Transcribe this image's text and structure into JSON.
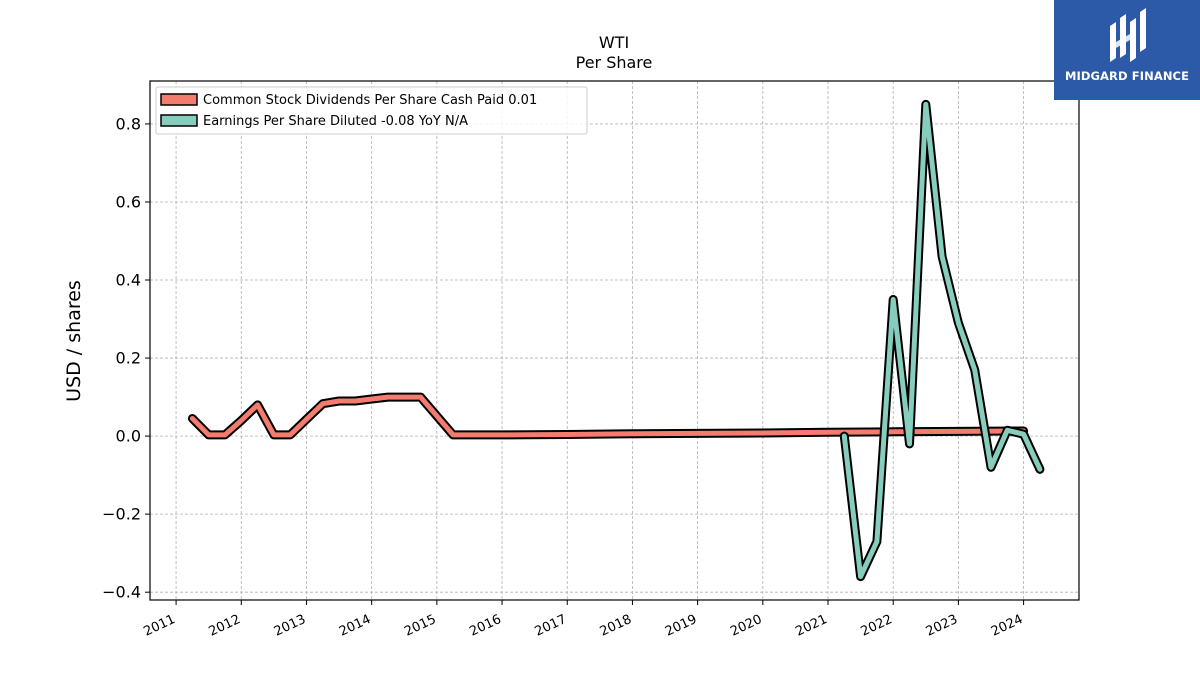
{
  "brand": {
    "name": "MIDGARD FINANCE",
    "bg_color": "#2c5aa8"
  },
  "chart_data": {
    "type": "line",
    "title": "WTI",
    "subtitle": "Per  Share",
    "xlabel": "",
    "ylabel": "USD / shares",
    "xlim": [
      2010.6,
      2024.85
    ],
    "ylim": [
      -0.42,
      0.91
    ],
    "yticks": [
      -0.4,
      -0.2,
      0.0,
      0.2,
      0.4,
      0.6,
      0.8
    ],
    "ytick_labels": [
      "−0.4",
      "−0.2",
      "0.0",
      "0.2",
      "0.4",
      "0.6",
      "0.8"
    ],
    "xticks": [
      2011,
      2012,
      2013,
      2014,
      2015,
      2016,
      2017,
      2018,
      2019,
      2020,
      2021,
      2022,
      2023,
      2024
    ],
    "xtick_labels": [
      "2011",
      "2012",
      "2013",
      "2014",
      "2015",
      "2016",
      "2017",
      "2018",
      "2019",
      "2020",
      "2021",
      "2022",
      "2023",
      "2024"
    ],
    "grid": true,
    "legend_position": "top-left",
    "series": [
      {
        "name": "Common Stock Dividends Per Share Cash Paid  0.01",
        "color": "#f47c6e",
        "x": [
          2011.25,
          2011.5,
          2011.75,
          2012.0,
          2012.25,
          2012.5,
          2012.75,
          2013.0,
          2013.25,
          2013.5,
          2013.75,
          2014.0,
          2014.25,
          2014.5,
          2014.75,
          2015.25,
          2016.0,
          2017.0,
          2018.0,
          2019.0,
          2020.0,
          2021.0,
          2022.0,
          2023.0,
          2024.0
        ],
        "y": [
          0.045,
          0.003,
          0.003,
          0.04,
          0.08,
          0.003,
          0.003,
          0.043,
          0.083,
          0.09,
          0.09,
          0.095,
          0.1,
          0.1,
          0.1,
          0.003,
          0.003,
          0.004,
          0.006,
          0.007,
          0.008,
          0.01,
          0.011,
          0.012,
          0.013
        ]
      },
      {
        "name": "Earnings Per Share Diluted  -0.08 YoY N/A",
        "color": "#86cdbd",
        "x": [
          2021.25,
          2021.5,
          2021.75,
          2022.0,
          2022.25,
          2022.5,
          2022.75,
          2023.0,
          2023.25,
          2023.5,
          2023.75,
          2024.0,
          2024.25
        ],
        "y": [
          0.0,
          -0.36,
          -0.27,
          0.35,
          -0.02,
          0.85,
          0.46,
          0.29,
          0.17,
          -0.08,
          0.015,
          0.005,
          -0.085
        ]
      }
    ]
  }
}
